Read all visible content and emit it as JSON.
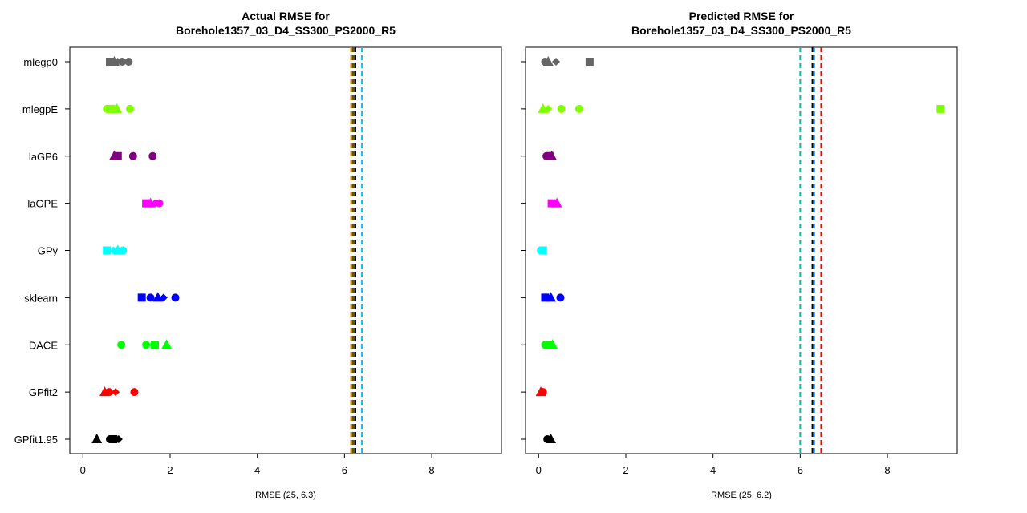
{
  "chart_data": [
    {
      "type": "scatter",
      "title": "Actual RMSE for\nBorehole1357_03_D4_SS300_PS2000_R5",
      "xlabel": "RMSE (25, 6.3)",
      "ylabel": "",
      "xlim": [
        -0.3,
        9.6
      ],
      "xticks": [
        0,
        2,
        4,
        6,
        8
      ],
      "categories": [
        "mlegp0",
        "mlegpE",
        "laGP6",
        "laGPE",
        "GPy",
        "sklearn",
        "DACE",
        "GPfit2",
        "GPfit1.95"
      ],
      "category_colors": [
        "#666666",
        "#7fff00",
        "#800080",
        "#ff00ff",
        "#00ffff",
        "#0000ff",
        "#00ff00",
        "#ff0000",
        "#000000"
      ],
      "points": [
        {
          "category": "mlegp0",
          "x": 0.62,
          "shape": "square"
        },
        {
          "category": "mlegp0",
          "x": 0.72,
          "shape": "triangle"
        },
        {
          "category": "mlegp0",
          "x": 0.8,
          "shape": "diamond"
        },
        {
          "category": "mlegp0",
          "x": 0.9,
          "shape": "circle"
        },
        {
          "category": "mlegp0",
          "x": 1.05,
          "shape": "circle"
        },
        {
          "category": "mlegpE",
          "x": 0.55,
          "shape": "circle"
        },
        {
          "category": "mlegpE",
          "x": 0.65,
          "shape": "square"
        },
        {
          "category": "mlegpE",
          "x": 0.78,
          "shape": "triangle"
        },
        {
          "category": "mlegpE",
          "x": 1.08,
          "shape": "circle"
        },
        {
          "category": "laGP6",
          "x": 0.72,
          "shape": "triangle"
        },
        {
          "category": "laGP6",
          "x": 0.8,
          "shape": "square"
        },
        {
          "category": "laGP6",
          "x": 1.15,
          "shape": "circle"
        },
        {
          "category": "laGP6",
          "x": 1.6,
          "shape": "circle"
        },
        {
          "category": "laGPE",
          "x": 1.45,
          "shape": "square"
        },
        {
          "category": "laGPE",
          "x": 1.55,
          "shape": "triangle"
        },
        {
          "category": "laGPE",
          "x": 1.65,
          "shape": "diamond"
        },
        {
          "category": "laGPE",
          "x": 1.75,
          "shape": "circle"
        },
        {
          "category": "GPy",
          "x": 0.55,
          "shape": "square"
        },
        {
          "category": "GPy",
          "x": 0.7,
          "shape": "diamond"
        },
        {
          "category": "GPy",
          "x": 0.8,
          "shape": "triangle"
        },
        {
          "category": "GPy",
          "x": 0.92,
          "shape": "circle"
        },
        {
          "category": "sklearn",
          "x": 1.35,
          "shape": "square"
        },
        {
          "category": "sklearn",
          "x": 1.55,
          "shape": "circle"
        },
        {
          "category": "sklearn",
          "x": 1.72,
          "shape": "triangle"
        },
        {
          "category": "sklearn",
          "x": 1.85,
          "shape": "diamond"
        },
        {
          "category": "sklearn",
          "x": 2.12,
          "shape": "circle"
        },
        {
          "category": "DACE",
          "x": 0.88,
          "shape": "circle"
        },
        {
          "category": "DACE",
          "x": 1.45,
          "shape": "circle"
        },
        {
          "category": "DACE",
          "x": 1.65,
          "shape": "square"
        },
        {
          "category": "DACE",
          "x": 1.92,
          "shape": "triangle"
        },
        {
          "category": "GPfit2",
          "x": 0.5,
          "shape": "triangle"
        },
        {
          "category": "GPfit2",
          "x": 0.6,
          "shape": "circle"
        },
        {
          "category": "GPfit2",
          "x": 0.75,
          "shape": "diamond"
        },
        {
          "category": "GPfit2",
          "x": 1.18,
          "shape": "circle"
        },
        {
          "category": "GPfit1.95",
          "x": 0.32,
          "shape": "triangle"
        },
        {
          "category": "GPfit1.95",
          "x": 0.62,
          "shape": "circle"
        },
        {
          "category": "GPfit1.95",
          "x": 0.7,
          "shape": "square"
        },
        {
          "category": "GPfit1.95",
          "x": 0.82,
          "shape": "diamond"
        }
      ],
      "vlines": [
        {
          "x": 6.15,
          "color": "#ff7f00"
        },
        {
          "x": 6.19,
          "color": "#008000"
        },
        {
          "x": 6.22,
          "color": "#8b4513"
        },
        {
          "x": 6.25,
          "color": "#000000"
        },
        {
          "x": 6.4,
          "color": "#00bfff"
        }
      ]
    },
    {
      "type": "scatter",
      "title": "Predicted RMSE for\nBorehole1357_03_D4_SS300_PS2000_R5",
      "xlabel": "RMSE (25, 6.2)",
      "ylabel": "",
      "xlim": [
        -0.3,
        9.6
      ],
      "xticks": [
        0,
        2,
        4,
        6,
        8
      ],
      "categories": [
        "mlegp0",
        "mlegpE",
        "laGP6",
        "laGPE",
        "GPy",
        "sklearn",
        "DACE",
        "GPfit2",
        "GPfit1.95"
      ],
      "category_colors": [
        "#666666",
        "#7fff00",
        "#800080",
        "#ff00ff",
        "#00ffff",
        "#0000ff",
        "#00ff00",
        "#ff0000",
        "#000000"
      ],
      "points": [
        {
          "category": "mlegp0",
          "x": 0.15,
          "shape": "circle"
        },
        {
          "category": "mlegp0",
          "x": 0.22,
          "shape": "triangle"
        },
        {
          "category": "mlegp0",
          "x": 0.4,
          "shape": "diamond"
        },
        {
          "category": "mlegp0",
          "x": 1.17,
          "shape": "square"
        },
        {
          "category": "mlegpE",
          "x": 0.1,
          "shape": "triangle"
        },
        {
          "category": "mlegpE",
          "x": 0.22,
          "shape": "diamond"
        },
        {
          "category": "mlegpE",
          "x": 0.52,
          "shape": "circle"
        },
        {
          "category": "mlegpE",
          "x": 0.93,
          "shape": "circle"
        },
        {
          "category": "mlegpE",
          "x": 9.22,
          "shape": "square"
        },
        {
          "category": "laGP6",
          "x": 0.18,
          "shape": "circle"
        },
        {
          "category": "laGP6",
          "x": 0.25,
          "shape": "square"
        },
        {
          "category": "laGP6",
          "x": 0.3,
          "shape": "triangle"
        },
        {
          "category": "laGPE",
          "x": 0.3,
          "shape": "square"
        },
        {
          "category": "laGPE",
          "x": 0.42,
          "shape": "triangle"
        },
        {
          "category": "GPy",
          "x": 0.05,
          "shape": "circle"
        },
        {
          "category": "GPy",
          "x": 0.1,
          "shape": "square"
        },
        {
          "category": "sklearn",
          "x": 0.15,
          "shape": "square"
        },
        {
          "category": "sklearn",
          "x": 0.28,
          "shape": "triangle"
        },
        {
          "category": "sklearn",
          "x": 0.5,
          "shape": "circle"
        },
        {
          "category": "DACE",
          "x": 0.15,
          "shape": "circle"
        },
        {
          "category": "DACE",
          "x": 0.25,
          "shape": "square"
        },
        {
          "category": "DACE",
          "x": 0.32,
          "shape": "triangle"
        },
        {
          "category": "GPfit2",
          "x": 0.05,
          "shape": "triangle"
        },
        {
          "category": "GPfit2",
          "x": 0.1,
          "shape": "circle"
        },
        {
          "category": "GPfit1.95",
          "x": 0.2,
          "shape": "circle"
        },
        {
          "category": "GPfit1.95",
          "x": 0.28,
          "shape": "triangle"
        }
      ],
      "vlines": [
        {
          "x": 6.0,
          "color": "#00bfa5"
        },
        {
          "x": 6.28,
          "color": "#000000"
        },
        {
          "x": 6.32,
          "color": "#1e90ff"
        },
        {
          "x": 6.48,
          "color": "#ff0000"
        }
      ]
    }
  ]
}
